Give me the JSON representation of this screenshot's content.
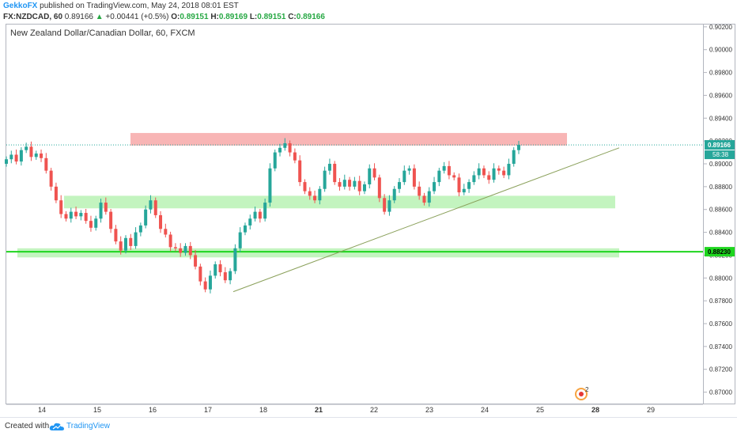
{
  "header": {
    "author": "GekkoFX",
    "published_text": "published on TradingView.com, May 24, 2018 08:01 EST",
    "symbol": "FX:NZDCAD, 60",
    "last": "0.89166",
    "change": "+0.00441 (+0.5%)",
    "o_label": "O:",
    "o_value": "0.89151",
    "h_label": "H:",
    "h_value": "0.89169",
    "l_label": "L:",
    "l_value": "0.89151",
    "c_label": "C:",
    "c_value": "0.89166"
  },
  "chart_data": {
    "type": "candlestick",
    "title": "New Zealand Dollar/Canadian Dollar, 60, FXCM",
    "x_ticks": [
      "14",
      "15",
      "16",
      "17",
      "18",
      "21",
      "22",
      "23",
      "24",
      "25",
      "28",
      "29"
    ],
    "y_ticks": [
      "0.90200",
      "0.90000",
      "0.89800",
      "0.89600",
      "0.89400",
      "0.89200",
      "0.89000",
      "0.88800",
      "0.88600",
      "0.88400",
      "0.88200",
      "0.88000",
      "0.87800",
      "0.87600",
      "0.87400",
      "0.87200",
      "0.87000"
    ],
    "ylim": [
      0.869,
      0.9022
    ],
    "price_labels": {
      "last_price": "0.89166",
      "countdown": "58:38",
      "hline_price": "0.88230"
    },
    "last_price": 0.89166,
    "hline_price": 0.8823,
    "zones": [
      {
        "name": "resistance",
        "from_day": "15.6",
        "to_day": "25.5",
        "low": 0.8916,
        "high": 0.8927,
        "color": "#f7a8a8"
      },
      {
        "name": "support",
        "from_day": "14.4",
        "to_day": "28.3",
        "low": 0.8861,
        "high": 0.8872,
        "color": "#b9f2b4"
      },
      {
        "name": "support-2",
        "from_day": "13.2",
        "to_day": "28.4",
        "low": 0.8818,
        "high": 0.8826,
        "color": "#b9f2b4"
      }
    ],
    "trendline": {
      "from": [
        "17.4",
        0.8788
      ],
      "to": [
        "28.3",
        0.8914
      ],
      "color": "#8aa05a"
    },
    "candles_close": [
      0.8904,
      0.8908,
      0.8902,
      0.8912,
      0.8915,
      0.8906,
      0.8909,
      0.8905,
      0.8894,
      0.888,
      0.8868,
      0.8856,
      0.8852,
      0.8858,
      0.8854,
      0.8857,
      0.885,
      0.8844,
      0.8852,
      0.8866,
      0.8858,
      0.8843,
      0.8832,
      0.8824,
      0.8835,
      0.8828,
      0.884,
      0.8846,
      0.886,
      0.8868,
      0.8855,
      0.8843,
      0.8838,
      0.8827,
      0.8826,
      0.8822,
      0.8828,
      0.882,
      0.881,
      0.8797,
      0.879,
      0.8802,
      0.8812,
      0.8805,
      0.8798,
      0.8806,
      0.8826,
      0.884,
      0.8846,
      0.8852,
      0.8858,
      0.8852,
      0.8866,
      0.8896,
      0.891,
      0.8914,
      0.8918,
      0.891,
      0.8903,
      0.8884,
      0.8876,
      0.8872,
      0.8868,
      0.8878,
      0.8894,
      0.89,
      0.8884,
      0.888,
      0.8886,
      0.888,
      0.8885,
      0.8876,
      0.8882,
      0.8896,
      0.8888,
      0.887,
      0.8858,
      0.8868,
      0.8878,
      0.8884,
      0.8894,
      0.8896,
      0.888,
      0.8872,
      0.8866,
      0.8876,
      0.8884,
      0.8894,
      0.8898,
      0.889,
      0.8888,
      0.8875,
      0.8878,
      0.8884,
      0.889,
      0.8896,
      0.889,
      0.8886,
      0.8896,
      0.8894,
      0.889,
      0.89,
      0.8912,
      0.89166
    ]
  },
  "footer": {
    "created_label": "Created with",
    "brand": "TradingView"
  },
  "annotation": {
    "count": "2"
  }
}
